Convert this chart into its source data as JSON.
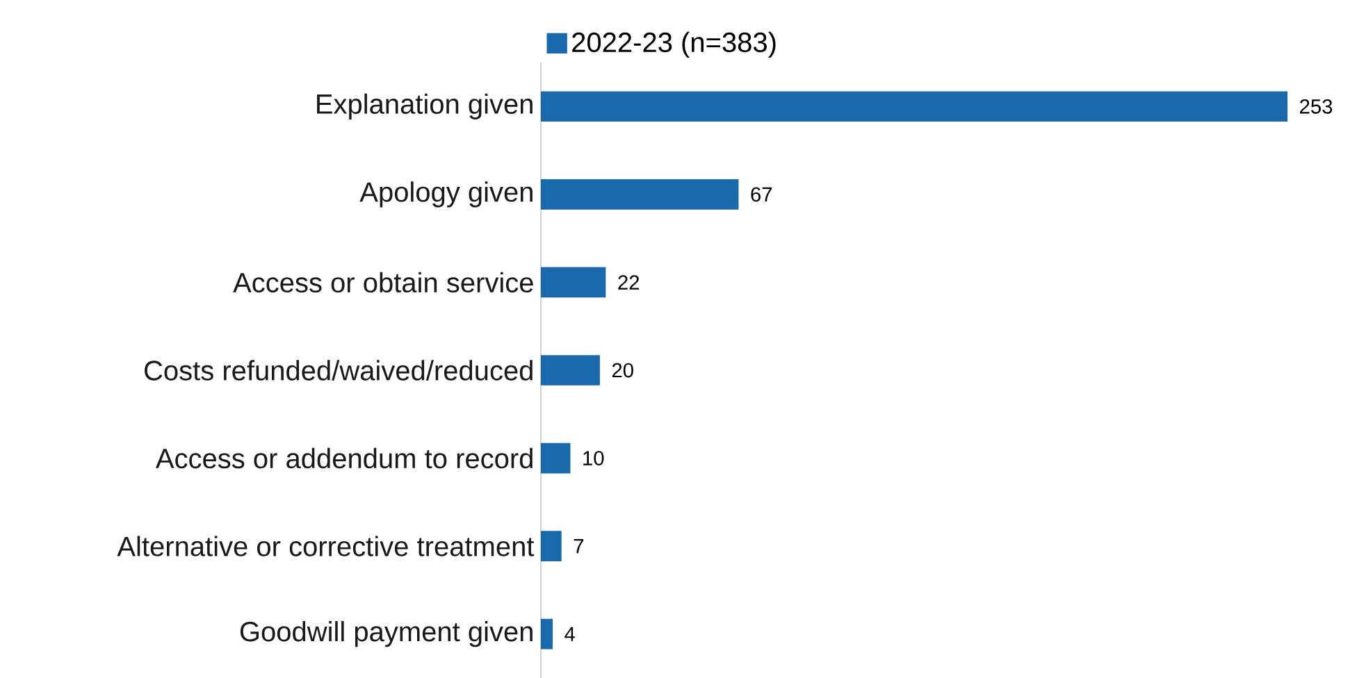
{
  "chart_data": {
    "type": "bar",
    "orientation": "horizontal",
    "data_labels": true,
    "legend": "top left",
    "categories": [
      "Explanation given",
      "Apology given",
      "Access or obtain service",
      "Costs refunded/waived/reduced",
      "Access or addendum to record",
      "Alternative or corrective treatment",
      "Goodwill payment given"
    ],
    "series": [
      {
        "name": "2022-23 (n=383)",
        "color": "#1a69ad",
        "values": [
          253,
          67,
          22,
          20,
          10,
          7,
          4
        ]
      }
    ]
  }
}
